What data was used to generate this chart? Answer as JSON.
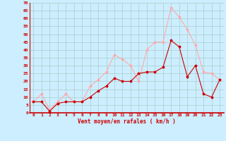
{
  "title": "",
  "xlabel": "Vent moyen/en rafales ( km/h )",
  "ylabel": "",
  "background_color": "#cceeff",
  "grid_color": "#aacccc",
  "x_labels": [
    "0",
    "1",
    "2",
    "3",
    "4",
    "5",
    "6",
    "7",
    "8",
    "9",
    "10",
    "11",
    "12",
    "13",
    "14",
    "15",
    "16",
    "17",
    "18",
    "19",
    "20",
    "21",
    "22",
    "23"
  ],
  "x_values": [
    0,
    1,
    2,
    3,
    4,
    5,
    6,
    7,
    8,
    9,
    10,
    11,
    12,
    13,
    14,
    15,
    16,
    17,
    18,
    19,
    20,
    21,
    22,
    23
  ],
  "vent_moyen": [
    7,
    7,
    1,
    6,
    7,
    7,
    7,
    10,
    14,
    17,
    22,
    20,
    20,
    25,
    26,
    26,
    29,
    46,
    42,
    23,
    30,
    12,
    10,
    21
  ],
  "rafales": [
    7,
    12,
    2,
    7,
    12,
    7,
    7,
    17,
    21,
    26,
    37,
    34,
    30,
    20,
    40,
    45,
    45,
    67,
    61,
    53,
    43,
    26,
    25,
    21
  ],
  "moyen_color": "#cc0000",
  "rafales_color": "#ffaaaa",
  "ylim": [
    0,
    70
  ],
  "yticks": [
    0,
    5,
    10,
    15,
    20,
    25,
    30,
    35,
    40,
    45,
    50,
    55,
    60,
    65,
    70
  ],
  "marker_size": 2.5,
  "line_width": 0.8,
  "tick_fontsize": 4.5,
  "xlabel_fontsize": 5.5
}
